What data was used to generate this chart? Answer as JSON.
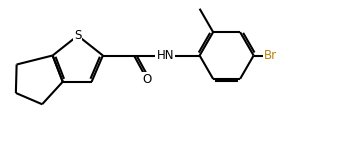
{
  "bg_color": "#ffffff",
  "bond_color": "#000000",
  "atom_colors": {
    "S": "#000000",
    "O": "#000000",
    "N": "#000000",
    "Br": "#b8860b",
    "C": "#000000"
  },
  "line_width": 1.5,
  "font_size": 8.5,
  "figsize": [
    3.58,
    1.5
  ],
  "dpi": 100
}
